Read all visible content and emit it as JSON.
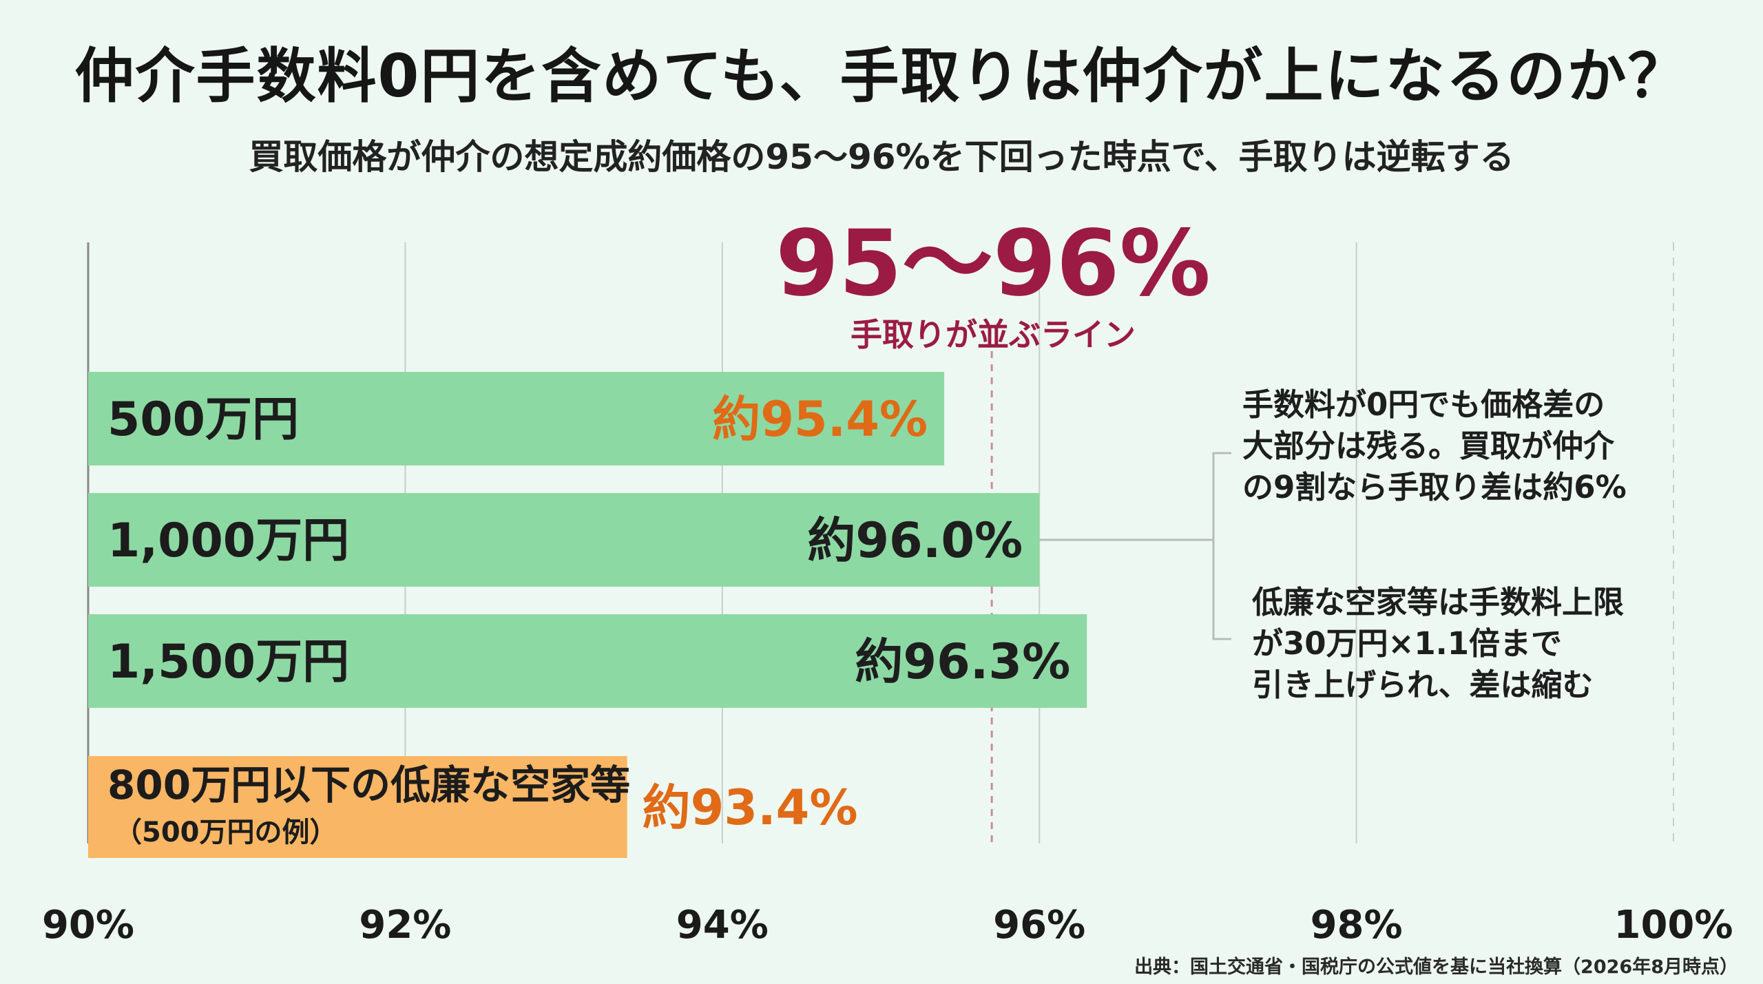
{
  "title": "仲介手数料0円を含めても、手取りは仲介が上になるのか？",
  "subtitle": "買取価格が仲介の想定成約価格の95〜96%を下回った時点で、手取りは逆転する",
  "source": "出典：国土交通省・国税庁の公式値を基に当社換算（2026年8月時点）",
  "notes": [
    {
      "lines": [
        "手数料が0円でも価格差の",
        "大部分は残る。買取が仲介",
        "の9割なら手取り差は約6%"
      ]
    },
    {
      "lines": [
        "低廉な空家等は手数料上限",
        "が30万円×1.1倍まで",
        "引き上げられ、差は縮む"
      ]
    }
  ],
  "chart_data": {
    "type": "bar",
    "orientation": "horizontal",
    "xlim": [
      90,
      100
    ],
    "x_ticks": [
      90,
      92,
      94,
      96,
      98,
      100
    ],
    "x_tick_labels": [
      "90%",
      "92%",
      "94%",
      "96%",
      "98%",
      "100%"
    ],
    "grid": true,
    "categories": [
      "500万円",
      "1,000万円",
      "1,500万円",
      "800万円以下の低廉な空家等"
    ],
    "category_sublabels": [
      "",
      "",
      "",
      "（500万円の例）"
    ],
    "values": [
      95.4,
      96.0,
      96.3,
      93.4
    ],
    "value_labels": [
      "約95.4%",
      "約96.0%",
      "約96.3%",
      "約93.4%"
    ],
    "bar_colors": [
      "#8dd9a3",
      "#8dd9a3",
      "#8dd9a3",
      "#f9b664"
    ],
    "value_label_colors": [
      "#e06a16",
      "#1e1e1e",
      "#1e1e1e",
      "#e06a16"
    ],
    "reference_line": {
      "value": 95.7,
      "label": "95〜96%",
      "sublabel": "手取りが並ぶライン",
      "color": "#9b1b45"
    }
  }
}
